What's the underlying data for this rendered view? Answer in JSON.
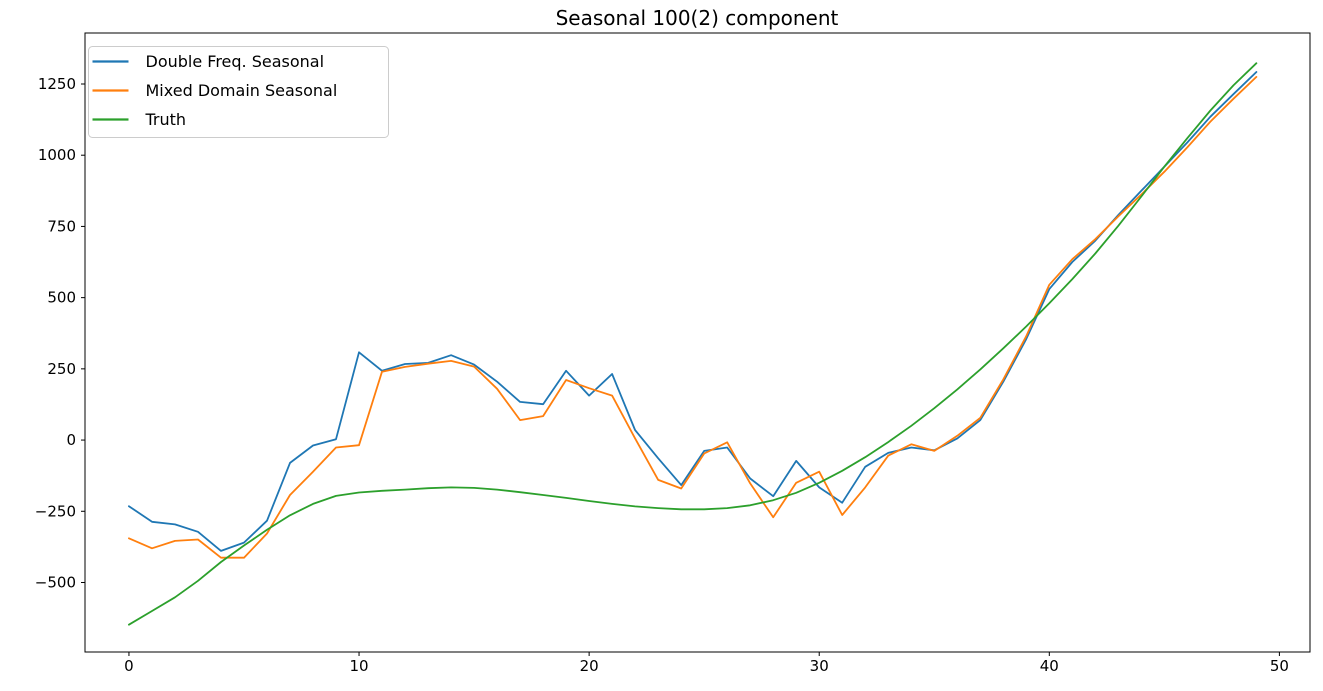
{
  "title": "Seasonal 100(2) component",
  "chart_data": {
    "type": "line",
    "title": "Seasonal 100(2) component",
    "xlabel": "",
    "ylabel": "",
    "grid": false,
    "legend_position": "upper left",
    "xlim": [
      -1.91,
      51.33
    ],
    "ylim": [
      -744,
      1429
    ],
    "x_ticks": [
      {
        "value": 0,
        "label": "0"
      },
      {
        "value": 10,
        "label": "10"
      },
      {
        "value": 20,
        "label": "20"
      },
      {
        "value": 30,
        "label": "30"
      },
      {
        "value": 40,
        "label": "40"
      },
      {
        "value": 50,
        "label": "50"
      }
    ],
    "y_ticks": [
      {
        "value": -500,
        "label": "−500"
      },
      {
        "value": -250,
        "label": "−250"
      },
      {
        "value": 0,
        "label": "0"
      },
      {
        "value": 250,
        "label": "250"
      },
      {
        "value": 500,
        "label": "500"
      },
      {
        "value": 750,
        "label": "750"
      },
      {
        "value": 1000,
        "label": "1000"
      },
      {
        "value": 1250,
        "label": "1250"
      }
    ],
    "x": [
      0,
      1,
      2,
      3,
      4,
      5,
      6,
      7,
      8,
      9,
      10,
      11,
      12,
      13,
      14,
      15,
      16,
      17,
      18,
      19,
      20,
      21,
      22,
      23,
      24,
      25,
      26,
      27,
      28,
      29,
      30,
      31,
      32,
      33,
      34,
      35,
      36,
      37,
      38,
      39,
      40,
      41,
      42,
      43,
      44,
      45,
      46,
      47,
      48,
      49
    ],
    "series": [
      {
        "name": "Double Freq. Seasonal",
        "color": "#1f77b4",
        "values": [
          -232,
          -287,
          -296,
          -322,
          -389,
          -360,
          -283,
          -80,
          -19,
          3,
          308,
          243,
          267,
          271,
          298,
          265,
          205,
          134,
          126,
          243,
          156,
          232,
          35,
          -64,
          -158,
          -38,
          -26,
          -135,
          -197,
          -73,
          -166,
          -220,
          -94,
          -45,
          -26,
          -36,
          6,
          70,
          205,
          355,
          530,
          625,
          700,
          790,
          875,
          960,
          1045,
          1135,
          1214,
          1292
        ]
      },
      {
        "name": "Mixed Domain Seasonal",
        "color": "#ff7f0e",
        "values": [
          -345,
          -380,
          -354,
          -349,
          -413,
          -413,
          -328,
          -193,
          -111,
          -26,
          -18,
          240,
          257,
          268,
          278,
          258,
          180,
          70,
          84,
          211,
          182,
          156,
          6,
          -140,
          -170,
          -47,
          -8,
          -152,
          -271,
          -150,
          -111,
          -263,
          -166,
          -55,
          -15,
          -38,
          15,
          78,
          213,
          365,
          545,
          635,
          705,
          785,
          862,
          942,
          1028,
          1118,
          1198,
          1275
        ]
      },
      {
        "name": "Truth",
        "color": "#2ca02c",
        "values": [
          -648,
          -600,
          -552,
          -494,
          -428,
          -370,
          -315,
          -264,
          -224,
          -196,
          -184,
          -178,
          -174,
          -169,
          -166,
          -168,
          -174,
          -183,
          -193,
          -203,
          -214,
          -224,
          -233,
          -239,
          -243,
          -243,
          -239,
          -229,
          -211,
          -185,
          -150,
          -108,
          -60,
          -7,
          50,
          112,
          178,
          248,
          322,
          399,
          480,
          565,
          655,
          752,
          855,
          960,
          1060,
          1157,
          1245,
          1323
        ]
      }
    ],
    "axis_color": "#000000",
    "legend": {
      "border_color": "#cccccc",
      "background": "#ffffff"
    }
  }
}
